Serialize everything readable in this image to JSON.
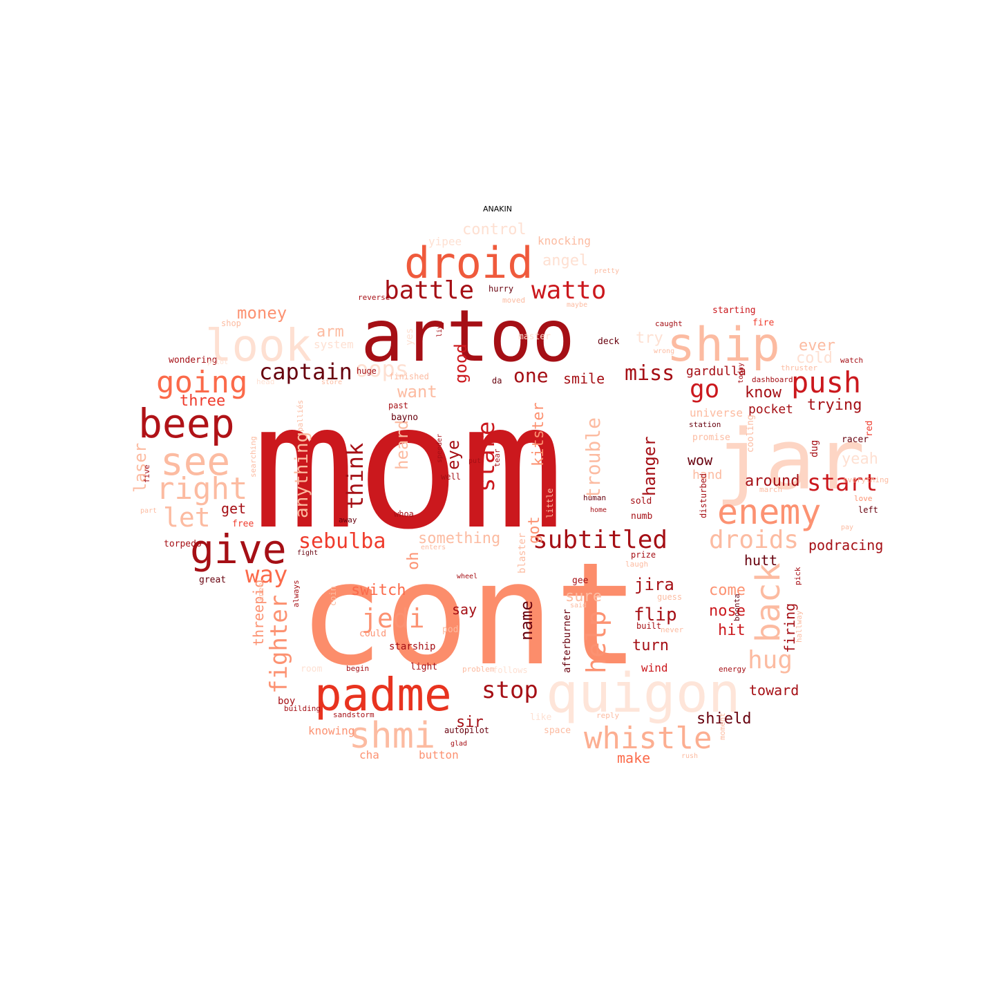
{
  "title": "ANAKIN",
  "palette": [
    "#67000d",
    "#a50f15",
    "#cb181d",
    "#ef3b2c",
    "#fb6a4a",
    "#fc9272",
    "#fcbba1",
    "#fee0d2"
  ],
  "words": [
    {
      "text": "mom",
      "color": "#cb181d"
    },
    {
      "text": "cont",
      "color": "#fc8d6b"
    },
    {
      "text": "artoo",
      "color": "#a50f15"
    },
    {
      "text": "jar",
      "color": "#fdd5c4"
    },
    {
      "text": "droid",
      "color": "#ef5a3c"
    },
    {
      "text": "look",
      "color": "#fee0d2"
    },
    {
      "text": "ship",
      "color": "#fcbba1"
    },
    {
      "text": "quigon",
      "color": "#fee5d9"
    },
    {
      "text": "padme",
      "color": "#e8331f"
    },
    {
      "text": "beep",
      "color": "#b01217"
    },
    {
      "text": "give",
      "color": "#a50f15"
    },
    {
      "text": "see",
      "color": "#fcbba1"
    },
    {
      "text": "going",
      "color": "#fb6a4a"
    },
    {
      "text": "enemy",
      "color": "#fc9272"
    },
    {
      "text": "right",
      "color": "#fcbba1"
    },
    {
      "text": "shmi",
      "color": "#fcbba1"
    },
    {
      "text": "whistle",
      "color": "#fcae91"
    },
    {
      "text": "push",
      "color": "#cb181d"
    },
    {
      "text": "battle",
      "color": "#a50f15"
    },
    {
      "text": "watto",
      "color": "#cb181d"
    },
    {
      "text": "captain",
      "color": "#67000d"
    },
    {
      "text": "subtitled",
      "color": "#a50f15"
    },
    {
      "text": "sebulba",
      "color": "#ef3b2c"
    },
    {
      "text": "jedi",
      "color": "#fc9272"
    },
    {
      "text": "back",
      "color": "#fcbba1"
    },
    {
      "text": "droids",
      "color": "#fcbba1"
    },
    {
      "text": "start",
      "color": "#cb181d"
    },
    {
      "text": "stop",
      "color": "#a50f15"
    },
    {
      "text": "let",
      "color": "#fcbba1"
    },
    {
      "text": "go",
      "color": "#cb181d"
    },
    {
      "text": "miss",
      "color": "#a50f15"
    },
    {
      "text": "one",
      "color": "#a50f15"
    },
    {
      "text": "oops",
      "color": "#fee0d2"
    },
    {
      "text": "way",
      "color": "#fb6a4a"
    },
    {
      "text": "think",
      "color": "#a50f15"
    },
    {
      "text": "stare",
      "color": "#cb181d"
    },
    {
      "text": "hug",
      "color": "#fcbba1"
    },
    {
      "text": "help",
      "color": "#fc9272"
    },
    {
      "text": "fighter",
      "color": "#fc9272"
    },
    {
      "text": "money",
      "color": "#fc9272"
    },
    {
      "text": "control",
      "color": "#fee0d2"
    },
    {
      "text": "angel",
      "color": "#fee0d2"
    },
    {
      "text": "try",
      "color": "#fee0d2"
    },
    {
      "text": "ever",
      "color": "#fcbba1"
    },
    {
      "text": "cold",
      "color": "#fee0d2"
    },
    {
      "text": "trying",
      "color": "#a50f15"
    },
    {
      "text": "know",
      "color": "#a50f15"
    },
    {
      "text": "three",
      "color": "#ef3b2c"
    },
    {
      "text": "smile",
      "color": "#a50f15"
    },
    {
      "text": "want",
      "color": "#fcbba1"
    },
    {
      "text": "good",
      "color": "#cb181d"
    },
    {
      "text": "arm",
      "color": "#fcbba1"
    },
    {
      "text": "system",
      "color": "#fee0d2"
    },
    {
      "text": "pocket",
      "color": "#a50f15"
    },
    {
      "text": "around",
      "color": "#a50f15"
    },
    {
      "text": "wow",
      "color": "#67000d"
    },
    {
      "text": "hand",
      "color": "#fcbba1"
    },
    {
      "text": "yeah",
      "color": "#fee0d2"
    },
    {
      "text": "hanger",
      "color": "#a50f15"
    },
    {
      "text": "trouble",
      "color": "#fcbba1"
    },
    {
      "text": "kitster",
      "color": "#fc9272"
    },
    {
      "text": "eye",
      "color": "#a50f15"
    },
    {
      "text": "heard",
      "color": "#fcbba1"
    },
    {
      "text": "anything",
      "color": "#fcbba1"
    },
    {
      "text": "laser",
      "color": "#fcbba1"
    },
    {
      "text": "get",
      "color": "#a50f15"
    },
    {
      "text": "got",
      "color": "#fc9272"
    },
    {
      "text": "something",
      "color": "#fcbba1"
    },
    {
      "text": "oh",
      "color": "#fc9272"
    },
    {
      "text": "hutt",
      "color": "#67000d"
    },
    {
      "text": "jira",
      "color": "#a50f15"
    },
    {
      "text": "come",
      "color": "#fc9272"
    },
    {
      "text": "nose",
      "color": "#cb181d"
    },
    {
      "text": "hit",
      "color": "#cb181d"
    },
    {
      "text": "flip",
      "color": "#a50f15"
    },
    {
      "text": "turn",
      "color": "#a50f15"
    },
    {
      "text": "sure",
      "color": "#fcbba1"
    },
    {
      "text": "switch",
      "color": "#fb6a4a"
    },
    {
      "text": "say",
      "color": "#a50f15"
    },
    {
      "text": "name",
      "color": "#67000d"
    },
    {
      "text": "firing",
      "color": "#a50f15"
    },
    {
      "text": "threepio",
      "color": "#fc9272"
    },
    {
      "text": "shield",
      "color": "#67000d"
    },
    {
      "text": "toward",
      "color": "#a50f15"
    },
    {
      "text": "sir",
      "color": "#a50f15"
    },
    {
      "text": "make",
      "color": "#fb6a4a"
    },
    {
      "text": "button",
      "color": "#fc9272"
    },
    {
      "text": "cha",
      "color": "#fc9272"
    },
    {
      "text": "knowing",
      "color": "#fc9272"
    },
    {
      "text": "wind",
      "color": "#cb181d"
    },
    {
      "text": "follows",
      "color": "#fee0d2"
    },
    {
      "text": "afterburner",
      "color": "#67000d"
    },
    {
      "text": "gardulla",
      "color": "#a50f15"
    },
    {
      "text": "universe",
      "color": "#fcbba1"
    },
    {
      "text": "yipee",
      "color": "#fee0d2"
    },
    {
      "text": "knocking",
      "color": "#fcbba1"
    },
    {
      "text": "shop",
      "color": "#fcbba1"
    },
    {
      "text": "wondering",
      "color": "#a50f15"
    },
    {
      "text": "great",
      "color": "#67000d"
    },
    {
      "text": "torpedo",
      "color": "#a50f15"
    },
    {
      "text": "free",
      "color": "#ef3b2c"
    },
    {
      "text": "fire",
      "color": "#ef3b2c"
    },
    {
      "text": "starting",
      "color": "#cb181d"
    },
    {
      "text": "master",
      "color": "#fee0d2"
    },
    {
      "text": "deck",
      "color": "#67000d"
    },
    {
      "text": "da",
      "color": "#67000d"
    },
    {
      "text": "huge",
      "color": "#a50f15"
    },
    {
      "text": "past",
      "color": "#a50f15"
    },
    {
      "text": "bayno",
      "color": "#67000d"
    },
    {
      "text": "well",
      "color": "#a50f15"
    },
    {
      "text": "sold",
      "color": "#a50f15"
    },
    {
      "text": "numb",
      "color": "#a50f15"
    },
    {
      "text": "prize",
      "color": "#a50f15"
    },
    {
      "text": "gee",
      "color": "#a50f15"
    },
    {
      "text": "racer",
      "color": "#67000d"
    },
    {
      "text": "left",
      "color": "#67000d"
    },
    {
      "text": "red",
      "color": "#ef3b2c"
    },
    {
      "text": "dug",
      "color": "#a50f15"
    },
    {
      "text": "cooling",
      "color": "#fcbba1"
    },
    {
      "text": "disturbed",
      "color": "#a50f15"
    },
    {
      "text": "promise",
      "color": "#fcbba1"
    },
    {
      "text": "room",
      "color": "#fee0d2"
    },
    {
      "text": "light",
      "color": "#a50f15"
    },
    {
      "text": "begin",
      "color": "#a50f15"
    },
    {
      "text": "starship",
      "color": "#a50f15"
    },
    {
      "text": "could",
      "color": "#fc9272"
    },
    {
      "text": "sandstorm",
      "color": "#a50f15"
    },
    {
      "text": "building",
      "color": "#a50f15"
    },
    {
      "text": "boy",
      "color": "#a50f15"
    },
    {
      "text": "like",
      "color": "#fee0d2"
    },
    {
      "text": "space",
      "color": "#fcbba1"
    },
    {
      "text": "reply",
      "color": "#fcbba1"
    },
    {
      "text": "autopilot",
      "color": "#67000d"
    },
    {
      "text": "energy",
      "color": "#a50f15"
    },
    {
      "text": "built",
      "color": "#a50f15"
    },
    {
      "text": "pod",
      "color": "#fcbba1"
    },
    {
      "text": "blaster",
      "color": "#fcbba1"
    },
    {
      "text": "coin",
      "color": "#fcbba1"
    },
    {
      "text": "always",
      "color": "#a50f15"
    },
    {
      "text": "kneel",
      "color": "#fcbba1"
    },
    {
      "text": "pick",
      "color": "#a50f15"
    },
    {
      "text": "boonta",
      "color": "#67000d"
    },
    {
      "text": "podracing",
      "color": "#a50f15"
    },
    {
      "text": "yes",
      "color": "#fee0d2"
    },
    {
      "text": "palliés",
      "color": "#fcbba1"
    },
    {
      "text": "five",
      "color": "#a50f15"
    },
    {
      "text": "searching",
      "color": "#fcbba1"
    },
    {
      "text": "reverse",
      "color": "#a50f15"
    },
    {
      "text": "hurry",
      "color": "#67000d"
    },
    {
      "text": "moved",
      "color": "#fcbba1"
    },
    {
      "text": "caught",
      "color": "#a50f15"
    },
    {
      "text": "dashboard",
      "color": "#a50f15"
    },
    {
      "text": "station",
      "color": "#67000d"
    },
    {
      "text": "march",
      "color": "#fcbba1"
    },
    {
      "text": "human",
      "color": "#67000d"
    },
    {
      "text": "home",
      "color": "#a50f15"
    },
    {
      "text": "away",
      "color": "#67000d"
    },
    {
      "text": "fight",
      "color": "#67000d"
    },
    {
      "text": "wheel",
      "color": "#a50f15"
    },
    {
      "text": "tear",
      "color": "#a50f15"
    },
    {
      "text": "put",
      "color": "#a50f15"
    },
    {
      "text": "speeder",
      "color": "#a50f15"
    },
    {
      "text": "enters",
      "color": "#fcbba1"
    },
    {
      "text": "whoa",
      "color": "#a50f15"
    },
    {
      "text": "part",
      "color": "#fcbba1"
    },
    {
      "text": "pilot",
      "color": "#fee0d2"
    },
    {
      "text": "head",
      "color": "#fee0d2"
    },
    {
      "text": "store",
      "color": "#fcbba1"
    },
    {
      "text": "live",
      "color": "#a50f15"
    },
    {
      "text": "watch",
      "color": "#a50f15"
    },
    {
      "text": "today",
      "color": "#a50f15"
    },
    {
      "text": "said",
      "color": "#fcbba1"
    },
    {
      "text": "laugh",
      "color": "#fcbba1"
    },
    {
      "text": "problem",
      "color": "#fcbba1"
    },
    {
      "text": "never",
      "color": "#fcbba1"
    },
    {
      "text": "love",
      "color": "#fc9272"
    },
    {
      "text": "pay",
      "color": "#fcbba1"
    },
    {
      "text": "rush",
      "color": "#fcbba1"
    },
    {
      "text": "wrong",
      "color": "#fcbba1"
    },
    {
      "text": "maybe",
      "color": "#fcbba1"
    },
    {
      "text": "pretty",
      "color": "#fcbba1"
    },
    {
      "text": "guess",
      "color": "#fcbba1"
    },
    {
      "text": "hallway",
      "color": "#fcbba1"
    },
    {
      "text": "little",
      "color": "#fcbba1"
    },
    {
      "text": "everything",
      "color": "#fcbba1"
    },
    {
      "text": "thruster",
      "color": "#fcbba1"
    },
    {
      "text": "moment",
      "color": "#fcbba1"
    },
    {
      "text": "finished",
      "color": "#fcbba1"
    },
    {
      "text": "glad",
      "color": "#a50f15"
    },
    {
      "text": "idea",
      "color": "#fcbba1"
    },
    {
      "text": "take",
      "color": "#fcbba1"
    }
  ]
}
